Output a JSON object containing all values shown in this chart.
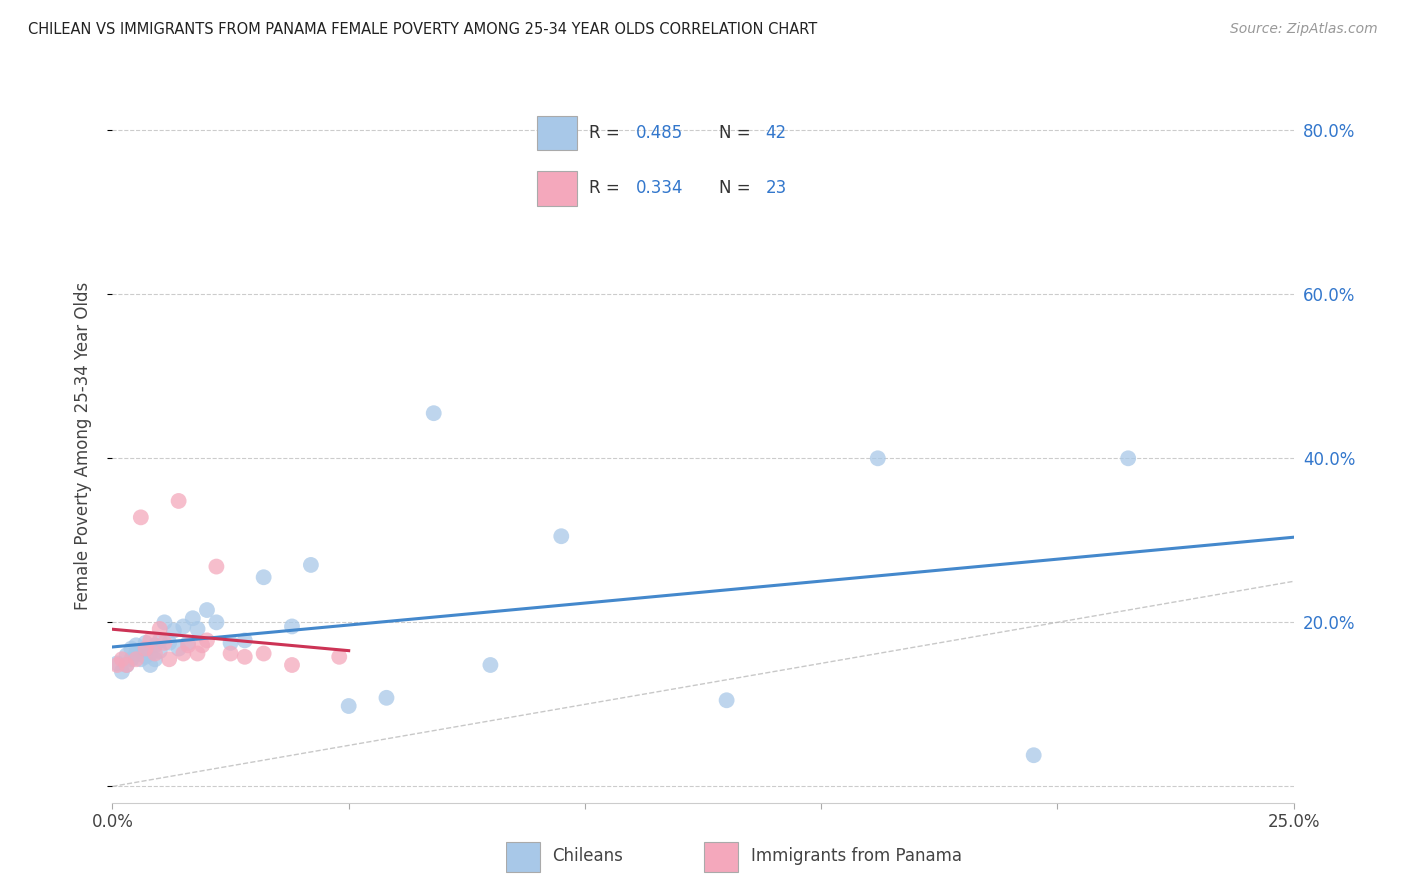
{
  "title": "CHILEAN VS IMMIGRANTS FROM PANAMA FEMALE POVERTY AMONG 25-34 YEAR OLDS CORRELATION CHART",
  "source": "Source: ZipAtlas.com",
  "ylabel": "Female Poverty Among 25-34 Year Olds",
  "xlim": [
    0.0,
    0.25
  ],
  "ylim": [
    -0.02,
    0.85
  ],
  "y_ticks": [
    0.0,
    0.2,
    0.4,
    0.6,
    0.8
  ],
  "y_tick_labels_right": [
    "",
    "20.0%",
    "40.0%",
    "60.0%",
    "80.0%"
  ],
  "chileans_R": 0.485,
  "chileans_N": 42,
  "panama_R": 0.334,
  "panama_N": 23,
  "chileans_color": "#a8c8e8",
  "panama_color": "#f4a8bc",
  "chileans_line_color": "#4488cc",
  "panama_line_color": "#cc3355",
  "diag_color": "#bbbbbb",
  "grid_color": "#cccccc",
  "background_color": "#ffffff",
  "legend_text_color": "#3377cc",
  "chileans_x": [
    0.001,
    0.002,
    0.003,
    0.003,
    0.004,
    0.004,
    0.005,
    0.005,
    0.006,
    0.006,
    0.007,
    0.007,
    0.008,
    0.008,
    0.009,
    0.009,
    0.01,
    0.01,
    0.011,
    0.012,
    0.013,
    0.014,
    0.015,
    0.016,
    0.017,
    0.018,
    0.02,
    0.022,
    0.025,
    0.028,
    0.032,
    0.038,
    0.042,
    0.05,
    0.058,
    0.068,
    0.08,
    0.095,
    0.13,
    0.162,
    0.195,
    0.215
  ],
  "chileans_y": [
    0.15,
    0.14,
    0.148,
    0.16,
    0.155,
    0.168,
    0.162,
    0.172,
    0.165,
    0.155,
    0.158,
    0.175,
    0.148,
    0.162,
    0.172,
    0.155,
    0.178,
    0.165,
    0.2,
    0.175,
    0.19,
    0.168,
    0.195,
    0.175,
    0.205,
    0.192,
    0.215,
    0.2,
    0.175,
    0.178,
    0.255,
    0.195,
    0.27,
    0.098,
    0.108,
    0.455,
    0.148,
    0.305,
    0.105,
    0.4,
    0.038,
    0.4
  ],
  "panama_x": [
    0.001,
    0.002,
    0.003,
    0.005,
    0.006,
    0.007,
    0.008,
    0.009,
    0.01,
    0.011,
    0.012,
    0.014,
    0.015,
    0.016,
    0.018,
    0.019,
    0.02,
    0.022,
    0.025,
    0.028,
    0.032,
    0.038,
    0.048
  ],
  "panama_y": [
    0.148,
    0.155,
    0.148,
    0.155,
    0.328,
    0.168,
    0.178,
    0.162,
    0.192,
    0.175,
    0.155,
    0.348,
    0.162,
    0.172,
    0.162,
    0.172,
    0.178,
    0.268,
    0.162,
    0.158,
    0.162,
    0.148,
    0.158
  ]
}
